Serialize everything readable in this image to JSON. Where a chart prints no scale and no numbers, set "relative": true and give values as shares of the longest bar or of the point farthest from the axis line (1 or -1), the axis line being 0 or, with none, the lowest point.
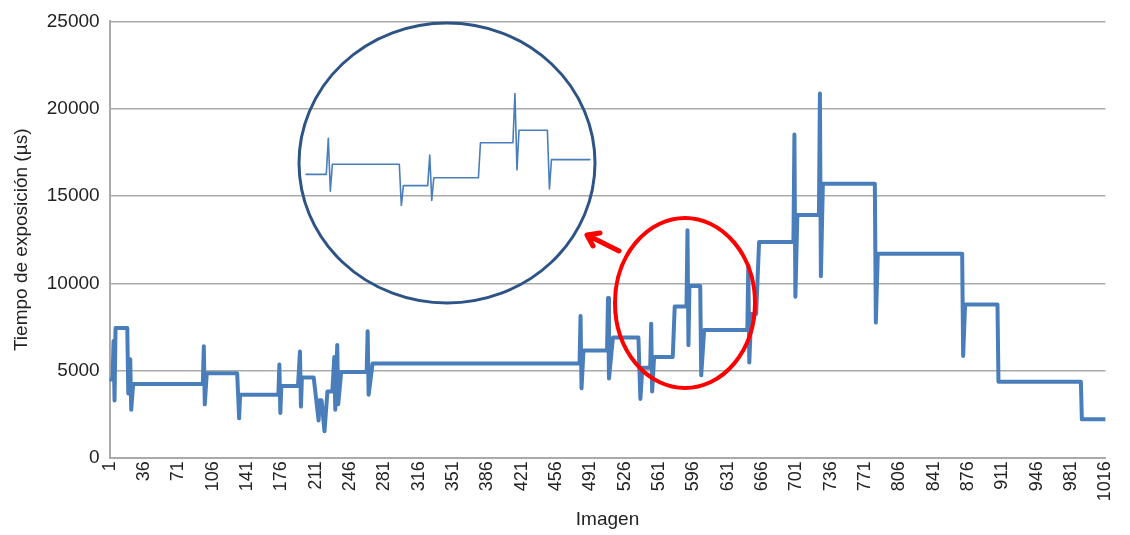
{
  "chart_data": [
    {
      "type": "line",
      "xlabel": "Imagen",
      "ylabel": "Tiempo de exposición (µs)",
      "xlim": [
        1,
        1016
      ],
      "xticks": [
        1,
        36,
        71,
        106,
        141,
        176,
        211,
        246,
        281,
        316,
        351,
        386,
        421,
        456,
        491,
        526,
        561,
        596,
        631,
        666,
        701,
        736,
        771,
        806,
        841,
        876,
        911,
        946,
        981,
        1016
      ],
      "ylim": [
        0,
        25000
      ],
      "yticks": [
        0,
        5000,
        10000,
        15000,
        20000,
        25000
      ],
      "grid": "y",
      "series": [
        {
          "color": "#4a7ebb",
          "x": [
            1,
            4,
            5,
            6,
            7,
            19,
            20,
            22,
            23,
            25,
            96,
            97,
            98,
            100,
            131,
            133,
            134,
            173,
            174,
            175,
            176,
            193,
            195,
            196,
            197,
            209,
            214,
            215,
            217,
            220,
            223,
            228,
            230,
            231,
            233,
            234,
            237,
            263,
            264,
            265,
            269,
            480,
            481,
            482,
            484,
            508,
            509,
            510,
            514,
            540,
            542,
            544,
            552,
            553,
            554,
            556,
            575,
            577,
            589,
            590,
            591,
            592,
            603,
            604,
            607,
            651,
            652,
            653,
            655,
            660,
            663,
            698,
            699,
            700,
            702,
            724,
            725,
            726,
            728,
            781,
            782,
            784,
            870,
            871,
            873,
            906,
            907,
            991,
            992,
            1016
          ],
          "values": [
            4500,
            4500,
            6700,
            3300,
            7450,
            7450,
            3700,
            5660,
            2770,
            4250,
            4250,
            6400,
            3080,
            4860,
            4860,
            2280,
            3630,
            3630,
            5360,
            2590,
            4130,
            4130,
            6100,
            2950,
            4620,
            4620,
            2160,
            3320,
            3320,
            1540,
            3820,
            3820,
            5790,
            2770,
            6470,
            3080,
            4930,
            4930,
            7270,
            3630,
            5420,
            5420,
            8130,
            4000,
            6160,
            6160,
            9170,
            4560,
            6900,
            6900,
            3390,
            5170,
            5170,
            7700,
            3820,
            5790,
            5790,
            8680,
            8680,
            13050,
            6470,
            9850,
            9850,
            4740,
            7330,
            7330,
            11020,
            5480,
            8250,
            8250,
            12380,
            12380,
            18530,
            9240,
            13920,
            13920,
            20870,
            10410,
            15700,
            15700,
            7760,
            11700,
            11700,
            5850,
            8800,
            8800,
            4370,
            4370,
            2220,
            2220
          ]
        }
      ]
    },
    {
      "type": "line",
      "relative": true,
      "categories": [
        null,
        null,
        null,
        null,
        null,
        null,
        null,
        null,
        null,
        null,
        null,
        null,
        null,
        null,
        null,
        null,
        null,
        null,
        null,
        null,
        null,
        null,
        null,
        null,
        null,
        null,
        null,
        null,
        null,
        null,
        null,
        null,
        null,
        null,
        null,
        null,
        null,
        null,
        null,
        null,
        null,
        null,
        null,
        null,
        null,
        null,
        null,
        null,
        null,
        null,
        null,
        null,
        null,
        null,
        null,
        null,
        null,
        null,
        null,
        null,
        null,
        null,
        null,
        null,
        null,
        null,
        null,
        null,
        null,
        null,
        null,
        null,
        null,
        null,
        null,
        null,
        null,
        null,
        null,
        null,
        null,
        null,
        null,
        null,
        null,
        null,
        null,
        null,
        null,
        null,
        null,
        null,
        null,
        null,
        null,
        null,
        null,
        null,
        null,
        null,
        null,
        null,
        null,
        null,
        null,
        null,
        null,
        null,
        null,
        null,
        null,
        null,
        null,
        null,
        null,
        null,
        null,
        null,
        null,
        null,
        null,
        null,
        null,
        null,
        null,
        null,
        null,
        null,
        null,
        null,
        null,
        null,
        null,
        null,
        null,
        null,
        null,
        null,
        null,
        null,
        null
      ],
      "series": [
        {
          "color": "#4a7ebb",
          "values": [
            0.28,
            0.28,
            0.28,
            0.28,
            0.28,
            0.28,
            0.28,
            0.28,
            0.28,
            0.28,
            0.28,
            0.6,
            0.13,
            0.37,
            0.37,
            0.37,
            0.37,
            0.37,
            0.37,
            0.37,
            0.37,
            0.37,
            0.37,
            0.37,
            0.37,
            0.37,
            0.37,
            0.37,
            0.37,
            0.37,
            0.37,
            0.37,
            0.37,
            0.37,
            0.37,
            0.37,
            0.37,
            0.37,
            0.37,
            0.37,
            0.37,
            0.37,
            0.37,
            0.37,
            0.37,
            0.37,
            0.37,
            0,
            0.18,
            0.18,
            0.18,
            0.18,
            0.18,
            0.18,
            0.18,
            0.18,
            0.18,
            0.18,
            0.18,
            0.18,
            0.18,
            0.45,
            0.05,
            0.25,
            0.25,
            0.25,
            0.25,
            0.25,
            0.25,
            0.25,
            0.25,
            0.25,
            0.25,
            0.25,
            0.25,
            0.25,
            0.25,
            0.25,
            0.25,
            0.25,
            0.25,
            0.25,
            0.25,
            0.25,
            0.25,
            0.25,
            0.56,
            0.56,
            0.56,
            0.56,
            0.56,
            0.56,
            0.56,
            0.56,
            0.56,
            0.56,
            0.56,
            0.56,
            0.56,
            0.56,
            0.56,
            0.56,
            0.56,
            1,
            0.32,
            0.67,
            0.67,
            0.67,
            0.67,
            0.67,
            0.67,
            0.67,
            0.67,
            0.67,
            0.67,
            0.67,
            0.67,
            0.67,
            0.67,
            0.67,
            0.15,
            0.41,
            0.41,
            0.41,
            0.41,
            0.41,
            0.41,
            0.41,
            0.41,
            0.41,
            0.41,
            0.41,
            0.41,
            0.41,
            0.41,
            0.41,
            0.41,
            0.41,
            0.41,
            0.41,
            0.41
          ]
        }
      ]
    }
  ]
}
